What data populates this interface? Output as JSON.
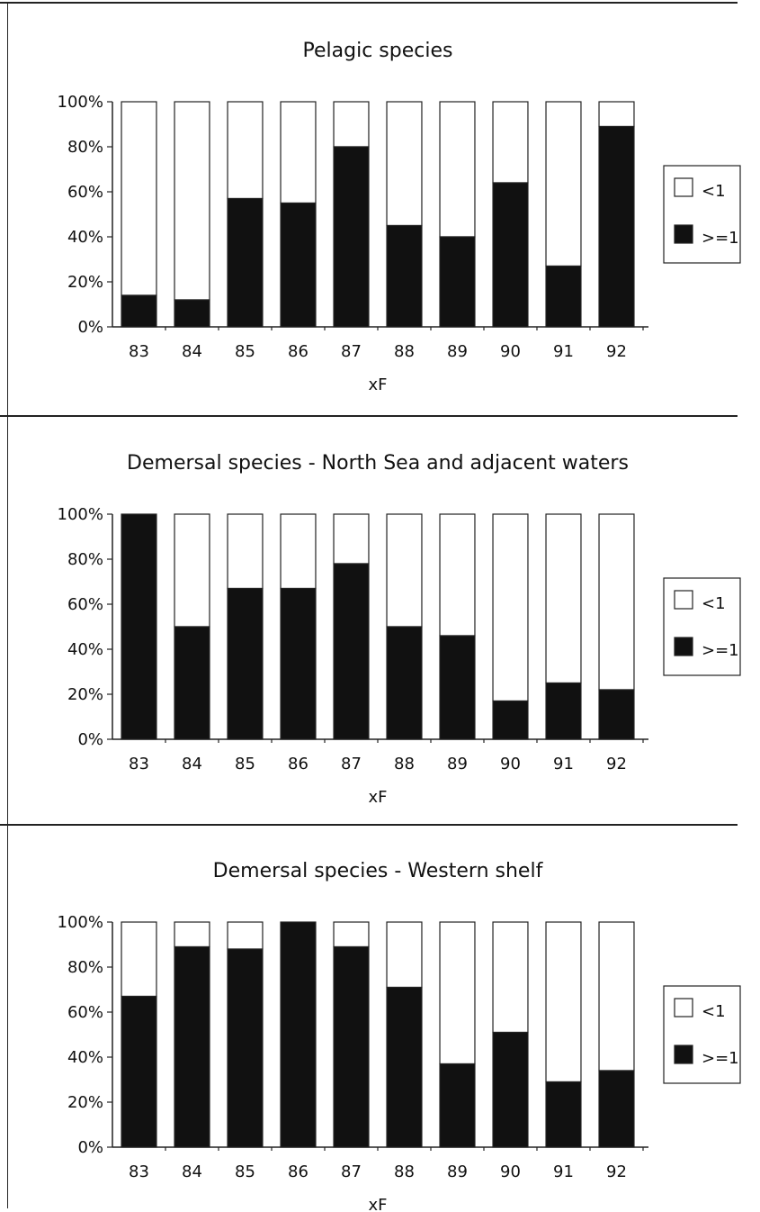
{
  "chart_data": [
    {
      "type": "bar",
      "stacked": true,
      "percent": true,
      "title": "Pelagic species",
      "xlabel": "xF",
      "ylabel": "",
      "ylim": [
        0,
        100
      ],
      "ytick_labels": [
        "0%",
        "20%",
        "40%",
        "60%",
        "80%",
        "100%"
      ],
      "categories": [
        "83",
        "84",
        "85",
        "86",
        "87",
        "88",
        "89",
        "90",
        "91",
        "92"
      ],
      "series": [
        {
          "name": ">=1",
          "color": "#111111",
          "values": [
            14,
            12,
            57,
            55,
            80,
            45,
            40,
            64,
            27,
            89
          ]
        },
        {
          "name": "<1",
          "color": "#ffffff",
          "values": [
            86,
            88,
            43,
            45,
            20,
            55,
            60,
            36,
            73,
            11
          ]
        }
      ],
      "legend_position": "right",
      "legend": [
        {
          "label": "<1",
          "color": "#ffffff"
        },
        {
          "label": ">=1",
          "color": "#111111"
        }
      ]
    },
    {
      "type": "bar",
      "stacked": true,
      "percent": true,
      "title": "Demersal species - North Sea and adjacent waters",
      "xlabel": "xF",
      "ylabel": "",
      "ylim": [
        0,
        100
      ],
      "ytick_labels": [
        "0%",
        "20%",
        "40%",
        "60%",
        "80%",
        "100%"
      ],
      "categories": [
        "83",
        "84",
        "85",
        "86",
        "87",
        "88",
        "89",
        "90",
        "91",
        "92"
      ],
      "series": [
        {
          "name": ">=1",
          "color": "#111111",
          "values": [
            100,
            50,
            67,
            67,
            78,
            50,
            46,
            17,
            25,
            22
          ]
        },
        {
          "name": "<1",
          "color": "#ffffff",
          "values": [
            0,
            50,
            33,
            33,
            22,
            50,
            54,
            83,
            75,
            78
          ]
        }
      ],
      "legend_position": "right",
      "legend": [
        {
          "label": "<1",
          "color": "#ffffff"
        },
        {
          "label": ">=1",
          "color": "#111111"
        }
      ]
    },
    {
      "type": "bar",
      "stacked": true,
      "percent": true,
      "title": "Demersal species - Western shelf",
      "xlabel": "xF",
      "ylabel": "",
      "ylim": [
        0,
        100
      ],
      "ytick_labels": [
        "0%",
        "20%",
        "40%",
        "60%",
        "80%",
        "100%"
      ],
      "categories": [
        "83",
        "84",
        "85",
        "86",
        "87",
        "88",
        "89",
        "90",
        "91",
        "92"
      ],
      "series": [
        {
          "name": ">=1",
          "color": "#111111",
          "values": [
            67,
            89,
            88,
            100,
            89,
            71,
            37,
            51,
            29,
            34
          ]
        },
        {
          "name": "<1",
          "color": "#ffffff",
          "values": [
            33,
            11,
            12,
            0,
            11,
            29,
            63,
            49,
            71,
            66
          ]
        }
      ],
      "legend_position": "right",
      "legend": [
        {
          "label": "<1",
          "color": "#ffffff"
        },
        {
          "label": ">=1",
          "color": "#111111"
        }
      ]
    }
  ]
}
